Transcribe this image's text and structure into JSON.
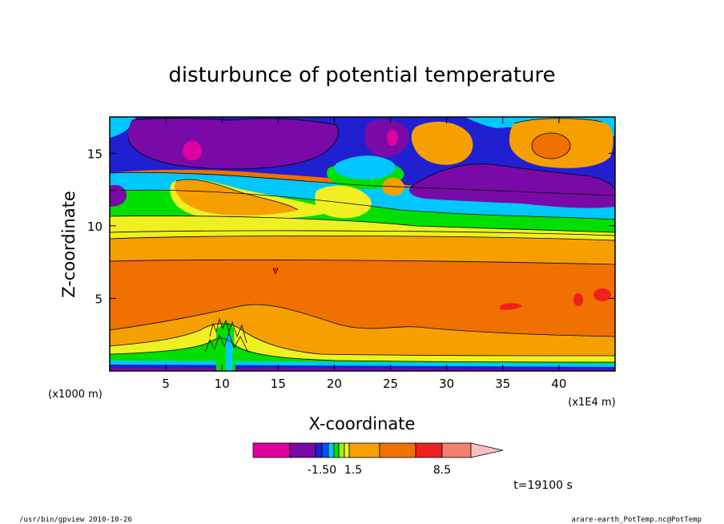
{
  "chart_data": {
    "type": "heatmap",
    "title": "disturbunce of potential temperature",
    "xlabel": "X-coordinate",
    "ylabel": "Z-coordinate",
    "x_unit": "(x1000 m)",
    "x_scale_note": "(x1E4 m)",
    "xlim": [
      0,
      45
    ],
    "ylim": [
      0,
      17.5
    ],
    "x_ticks": [
      "5",
      "10",
      "15",
      "20",
      "25",
      "30",
      "35",
      "40"
    ],
    "x_tick_values": [
      5,
      10,
      15,
      20,
      25,
      30,
      35,
      40
    ],
    "y_ticks": [
      "5",
      "10",
      "15"
    ],
    "y_tick_values": [
      5,
      10,
      15
    ],
    "colorbar": {
      "colors": [
        "#e000a0",
        "#7a0aa8",
        "#2020d0",
        "#0050ff",
        "#00c8ff",
        "#00e000",
        "#a0f000",
        "#f0f020",
        "#f5a000",
        "#f07000",
        "#f02020",
        "#f08070",
        "#f8c0c0"
      ],
      "labels": [
        "-1.50",
        "1.5",
        "8.5"
      ],
      "extend": "max"
    },
    "time_label": "t=19100 s"
  },
  "footer": {
    "left": "/usr/bin/gpview   2010-10-26",
    "right": "arare-earth_PotTemp.nc@PotTemp"
  }
}
